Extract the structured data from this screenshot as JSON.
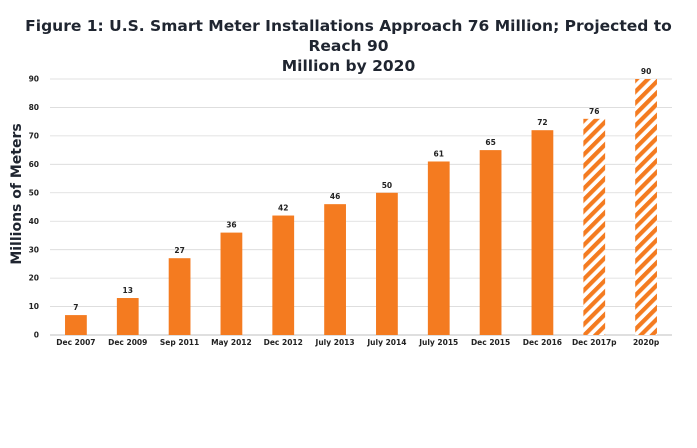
{
  "chart_data": {
    "type": "bar",
    "title_line1": "Figure 1: U.S. Smart Meter Installations Approach 76 Million; Projected to Reach 90",
    "title_line2": "Million by 2020",
    "xlabel": "",
    "ylabel": "Millions of Meters",
    "ylim": [
      0,
      90
    ],
    "yticks": [
      0,
      10,
      20,
      30,
      40,
      50,
      60,
      70,
      80,
      90
    ],
    "grid": true,
    "categories": [
      "Dec 2007",
      "Dec 2009",
      "Sep 2011",
      "May 2012",
      "Dec 2012",
      "July 2013",
      "July 2014",
      "July 2015",
      "Dec 2015",
      "Dec 2016",
      "Dec 2017p",
      "2020p"
    ],
    "values": [
      7,
      13,
      27,
      36,
      42,
      46,
      50,
      61,
      65,
      72,
      76,
      90
    ],
    "value_labels": [
      "7",
      "13",
      "27",
      "36",
      "42",
      "46",
      "50",
      "61",
      "65",
      "72",
      "76",
      "90"
    ],
    "projected": [
      false,
      false,
      false,
      false,
      false,
      false,
      false,
      false,
      false,
      false,
      true,
      true
    ],
    "colors": {
      "bar": "#f47b20",
      "hatch_bg": "#ffffff",
      "grid": "#d9d9d9",
      "axis": "#bfbfbf"
    }
  }
}
